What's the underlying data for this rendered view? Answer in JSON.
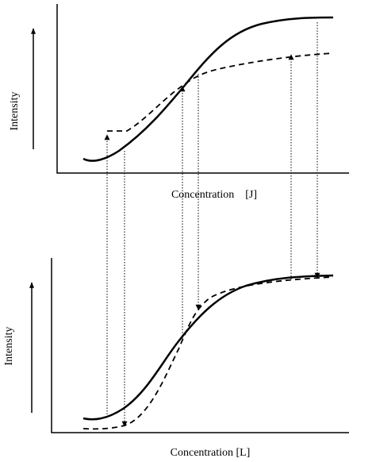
{
  "panels": [
    {
      "y_label": "Intensity",
      "x_label": "Concentration    [J]"
    },
    {
      "y_label": "Intensity",
      "x_label": "Concentration [L]"
    }
  ]
}
